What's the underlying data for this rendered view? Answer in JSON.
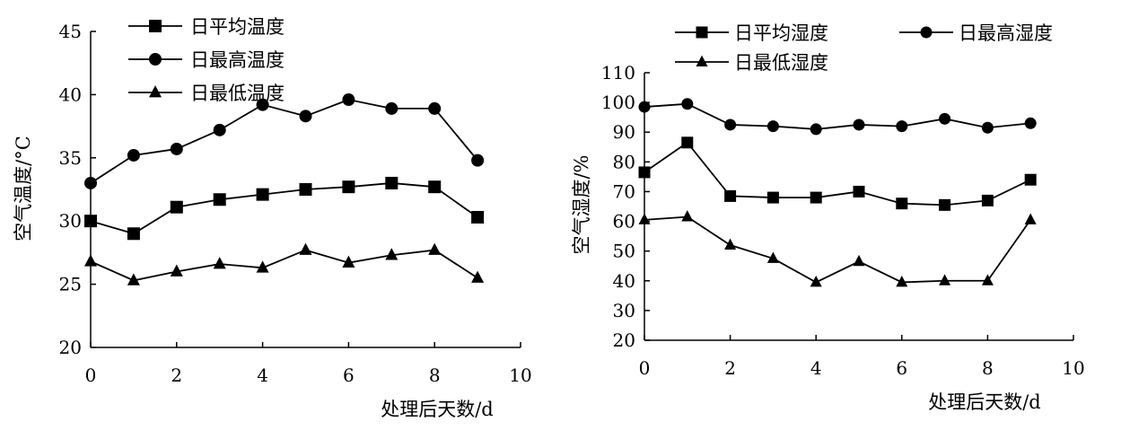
{
  "chart_data": [
    {
      "type": "line",
      "xlabel": "处理后天数/d",
      "ylabel": "空气温度/°C",
      "xlim": [
        0,
        10
      ],
      "ylim": [
        20,
        45
      ],
      "xticks": [
        0,
        2,
        4,
        6,
        8,
        10
      ],
      "yticks": [
        20,
        25,
        30,
        35,
        40,
        45
      ],
      "legend_position": "top-center",
      "grid": false,
      "x": [
        0,
        1,
        2,
        3,
        4,
        5,
        6,
        7,
        8,
        9
      ],
      "series": [
        {
          "name": "日平均温度",
          "marker": "square",
          "values": [
            30.0,
            29.0,
            31.1,
            31.7,
            32.1,
            32.5,
            32.7,
            33.0,
            32.7,
            30.3
          ]
        },
        {
          "name": "日最高温度",
          "marker": "circle",
          "values": [
            33.0,
            35.2,
            35.7,
            37.2,
            39.2,
            38.3,
            39.6,
            38.9,
            38.9,
            34.8
          ]
        },
        {
          "name": "日最低温度",
          "marker": "triangle",
          "values": [
            26.8,
            25.3,
            26.0,
            26.6,
            26.3,
            27.7,
            26.7,
            27.3,
            27.7,
            25.5
          ]
        }
      ]
    },
    {
      "type": "line",
      "xlabel": "处理后天数/d",
      "ylabel": "空气湿度/%",
      "xlim": [
        0,
        10
      ],
      "ylim": [
        20,
        110
      ],
      "xticks": [
        0,
        2,
        4,
        6,
        8,
        10
      ],
      "yticks": [
        20,
        30,
        40,
        50,
        60,
        70,
        80,
        90,
        100,
        110
      ],
      "legend_position": "top",
      "grid": false,
      "x": [
        0,
        1,
        2,
        3,
        4,
        5,
        6,
        7,
        8,
        9
      ],
      "series": [
        {
          "name": "日平均湿度",
          "marker": "square",
          "values": [
            76.5,
            86.5,
            68.5,
            68.0,
            68.0,
            70.0,
            66.0,
            65.5,
            67.0,
            74.0
          ]
        },
        {
          "name": "日最高湿度",
          "marker": "circle",
          "values": [
            98.5,
            99.5,
            92.5,
            92.0,
            91.0,
            92.5,
            92.0,
            94.5,
            91.5,
            93.0
          ]
        },
        {
          "name": "日最低湿度",
          "marker": "triangle",
          "values": [
            60.5,
            61.5,
            52.0,
            47.5,
            39.5,
            46.5,
            39.5,
            40.0,
            40.0,
            60.5
          ]
        }
      ]
    }
  ]
}
